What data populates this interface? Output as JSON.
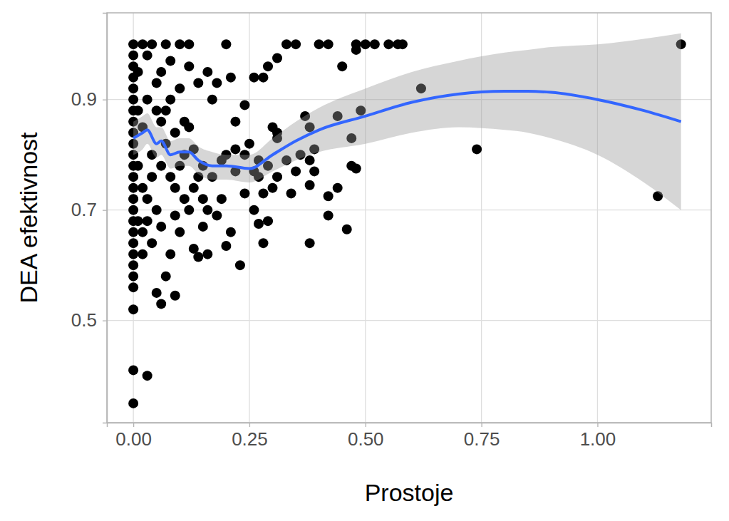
{
  "chart_data": {
    "type": "scatter",
    "xlabel": "Prostoje",
    "ylabel": "DEA efektivnost",
    "xlim": [
      -0.057,
      1.245
    ],
    "ylim": [
      0.315,
      1.057
    ],
    "xticks": [
      {
        "value": 0,
        "label": "0.00"
      },
      {
        "value": 0.25,
        "label": "0.25"
      },
      {
        "value": 0.5,
        "label": "0.50"
      },
      {
        "value": 0.75,
        "label": "0.75"
      },
      {
        "value": 1,
        "label": "1.00"
      }
    ],
    "yticks": [
      0.5,
      0.7,
      0.9
    ],
    "grid": true,
    "series": [
      {
        "type": "scatter",
        "color": "#000000",
        "marker": "circle",
        "x": [
          0,
          0,
          0,
          0,
          0,
          0,
          0,
          0,
          0,
          0,
          0,
          0,
          0,
          0,
          0,
          0,
          0,
          0,
          0,
          0,
          0,
          0,
          0,
          0,
          0,
          0,
          0.03,
          0.06,
          0.05,
          0.09,
          0.07,
          0.04,
          0.06,
          0.08,
          0.13,
          0.14,
          0.16,
          0.2,
          0.23,
          0.27,
          0.29,
          0.28,
          0.38,
          0.46,
          0.42,
          0.42,
          0.44,
          0.38,
          0.47,
          0.48,
          0.38,
          0.39,
          0.37,
          0.38,
          0.44,
          0.47,
          0.49,
          0.45,
          0.4,
          0.42,
          0.33,
          0.35,
          0.48,
          0.48,
          0.5,
          0.52,
          0.55,
          0.57,
          0.58,
          0.2,
          0.26,
          0.28,
          0.29,
          0.31,
          0.3,
          0.31,
          0.31,
          0.24,
          0.22,
          0.18,
          0.17,
          0.16,
          0.14,
          0.21,
          0.62,
          0.74,
          1.13,
          1.18,
          0.25,
          0.26,
          0.22,
          0.24,
          0.19,
          0.18,
          0.16,
          0.21,
          0.15,
          0.12,
          0.11,
          0.1,
          0.09,
          0.11,
          0.12,
          0.13,
          0.15,
          0.17,
          0.19,
          0.2,
          0.22,
          0.24,
          0.27,
          0.29,
          0.28,
          0.3,
          0.31,
          0.33,
          0.27,
          0.26,
          0.34,
          0.35,
          0.36,
          0.39,
          0.12,
          0.1,
          0.12,
          0.07,
          0.08,
          0.06,
          0.05,
          0.08,
          0.1,
          0.09,
          0.07,
          0.06,
          0.04,
          0.03,
          0.05,
          0.02,
          0.03,
          0.01,
          0.02,
          0.04,
          0.03,
          0.05,
          0.06,
          0.04,
          0.02,
          0.01,
          0.02,
          0.01,
          0.01,
          0.08,
          0.09,
          0.1,
          0.11,
          0.07,
          0.13,
          0.14,
          0.15,
          0.02,
          0.03
        ],
        "values": [
          1.0,
          0.98,
          0.96,
          0.94,
          0.92,
          0.9,
          0.88,
          0.86,
          0.84,
          0.82,
          0.8,
          0.78,
          0.76,
          0.74,
          0.72,
          0.7,
          0.68,
          0.66,
          0.64,
          0.62,
          0.6,
          0.58,
          0.56,
          0.52,
          0.41,
          0.35,
          0.4,
          0.53,
          0.55,
          0.545,
          0.58,
          0.64,
          0.67,
          0.62,
          0.63,
          0.615,
          0.62,
          0.635,
          0.6,
          0.675,
          0.68,
          0.64,
          0.64,
          0.665,
          0.69,
          0.725,
          0.74,
          0.745,
          0.78,
          0.775,
          0.79,
          0.81,
          0.87,
          0.85,
          0.87,
          0.83,
          0.88,
          0.96,
          1.0,
          1.0,
          1.0,
          1.0,
          1.0,
          0.99,
          1.0,
          1.0,
          1.0,
          1.0,
          1.0,
          1.0,
          0.94,
          0.94,
          0.96,
          0.975,
          0.85,
          0.84,
          0.83,
          0.89,
          0.86,
          0.93,
          0.9,
          0.95,
          0.93,
          0.94,
          0.92,
          0.81,
          0.725,
          1.0,
          0.82,
          0.77,
          0.77,
          0.73,
          0.72,
          0.69,
          0.7,
          0.66,
          0.67,
          0.7,
          0.72,
          0.66,
          0.69,
          0.86,
          0.85,
          0.81,
          0.78,
          0.76,
          0.79,
          0.8,
          0.81,
          0.8,
          0.79,
          0.78,
          0.73,
          0.74,
          0.76,
          0.79,
          0.76,
          0.7,
          0.73,
          0.77,
          0.8,
          0.77,
          0.96,
          1.0,
          1.0,
          1.0,
          0.97,
          0.95,
          0.93,
          0.9,
          0.92,
          0.84,
          0.82,
          0.78,
          0.76,
          0.72,
          0.7,
          0.85,
          0.9,
          0.95,
          1.0,
          1.0,
          0.98,
          0.88,
          0.86,
          0.8,
          0.74,
          0.68,
          0.62,
          0.78,
          0.88,
          0.76,
          0.74,
          0.78,
          0.8,
          0.88,
          0.74,
          0.76,
          0.72,
          0.66,
          0.68
        ]
      },
      {
        "type": "line",
        "color": "#3366ff",
        "x": [
          0,
          0.02,
          0.03,
          0.05,
          0.06,
          0.08,
          0.1,
          0.12,
          0.14,
          0.17,
          0.2,
          0.25,
          0.3,
          0.35,
          0.4,
          0.5,
          0.6,
          0.7,
          0.8,
          0.85,
          0.9,
          1.0,
          1.1,
          1.18
        ],
        "values": [
          0.83,
          0.84,
          0.845,
          0.82,
          0.825,
          0.8,
          0.805,
          0.805,
          0.79,
          0.78,
          0.78,
          0.775,
          0.8,
          0.825,
          0.845,
          0.87,
          0.895,
          0.91,
          0.915,
          0.915,
          0.913,
          0.9,
          0.88,
          0.86
        ],
        "lower": [
          0.8,
          0.81,
          0.82,
          0.795,
          0.8,
          0.775,
          0.78,
          0.78,
          0.765,
          0.755,
          0.755,
          0.75,
          0.77,
          0.79,
          0.805,
          0.82,
          0.84,
          0.85,
          0.845,
          0.84,
          0.83,
          0.8,
          0.75,
          0.7
        ],
        "upper": [
          0.86,
          0.87,
          0.875,
          0.85,
          0.85,
          0.825,
          0.83,
          0.83,
          0.815,
          0.805,
          0.8,
          0.8,
          0.83,
          0.86,
          0.885,
          0.92,
          0.95,
          0.97,
          0.985,
          0.99,
          0.995,
          1.0,
          1.01,
          1.02
        ]
      }
    ]
  }
}
